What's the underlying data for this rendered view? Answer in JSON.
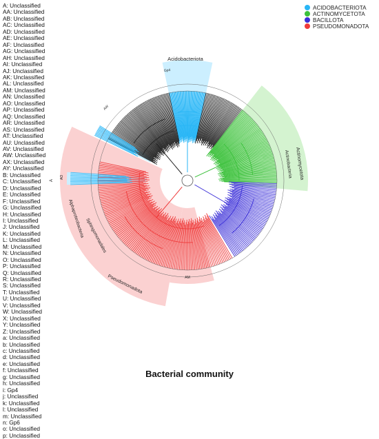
{
  "key": [
    "A: Unclassified",
    "AA: Unclassified",
    "AB: Unclassified",
    "AC: Unclassified",
    "AD: Unclassified",
    "AE: Unclassified",
    "AF: Unclassified",
    "AG: Unclassified",
    "AH: Unclassified",
    "AI: Unclassified",
    "AJ: Unclassified",
    "AK: Unclassified",
    "AL: Unclassified",
    "AM: Unclassified",
    "AN: Unclassified",
    "AO: Unclassified",
    "AP: Unclassified",
    "AQ: Unclassified",
    "AR: Unclassified",
    "AS: Unclassified",
    "AT: Unclassified",
    "AU: Unclassified",
    "AV: Unclassified",
    "AW: Unclassified",
    "AX: Unclassified",
    "AY: Unclassified",
    "B: Unclassified",
    "C: Unclassified",
    "D: Unclassified",
    "E: Unclassified",
    "F: Unclassified",
    "G: Unclassified",
    "H: Unclassified",
    "I: Unclassified",
    "J: Unclassified",
    "K: Unclassified",
    "L: Unclassified",
    "M: Unclassified",
    "N: Unclassified",
    "O: Unclassified",
    "P: Unclassified",
    "Q: Unclassified",
    "R: Unclassified",
    "S: Unclassified",
    "T: Unclassified",
    "U: Unclassified",
    "V: Unclassified",
    "W: Unclassified",
    "X: Unclassified",
    "Y: Unclassified",
    "Z: Unclassified",
    "a: Unclassified",
    "b: Unclassified",
    "c: Unclassified",
    "d: Unclassified",
    "e: Unclassified",
    "f: Unclassified",
    "g: Unclassified",
    "h: Unclassified",
    "i: Gp4",
    "j: Unclassified",
    "k: Unclassified",
    "l: Unclassified",
    "m: Unclassified",
    "n: Gp6",
    "o: Unclassified",
    "p: Unclassified"
  ],
  "legend": [
    {
      "label": "ACIDOBACTERIOTA",
      "color": "#29b6f6"
    },
    {
      "label": "ACTINOMYCETOTA",
      "color": "#3cc13c"
    },
    {
      "label": "BACILLOTA",
      "color": "#3b2fd8"
    },
    {
      "label": "PSEUDOMONADOTA",
      "color": "#ef3b3b"
    }
  ],
  "clades": {
    "acidobacteriota": "Acidobacteriota",
    "actinomycetota": "Actinomycetota",
    "actinobacteria": "Actinobacteria",
    "alphaproteobacteria": "Alphaproteobacteria",
    "sphingomonadales": "Sphingomonadales",
    "pseudomonadota": "Pseudomonadota"
  },
  "leaf_labels": {
    "aw": "AW",
    "am": "AM",
    "ao": "AO",
    "a": "A",
    "gp4": "Gp4"
  },
  "caption": "Bacterial community"
}
